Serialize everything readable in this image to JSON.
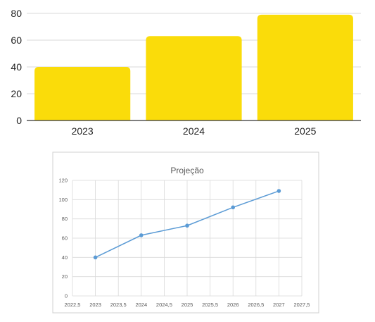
{
  "chart_data": [
    {
      "type": "bar",
      "categories": [
        "2023",
        "2024",
        "2025"
      ],
      "values": [
        40,
        63,
        79
      ],
      "title": "",
      "xlabel": "",
      "ylabel": "",
      "ylim": [
        0,
        80
      ],
      "yticks": [
        "0",
        "20",
        "40",
        "60",
        "80"
      ],
      "grid": true,
      "colors": {
        "bar": "#FADC0A",
        "grid": "#d9d9d9",
        "axis": "#333333"
      }
    },
    {
      "type": "line",
      "title": "Projeção",
      "xlabel": "",
      "ylabel": "",
      "x": [
        2023,
        2024,
        2025,
        2026,
        2027
      ],
      "series": [
        {
          "values": [
            40,
            63,
            73,
            92,
            109
          ]
        }
      ],
      "xlim": [
        2022.5,
        2027.5
      ],
      "ylim": [
        0,
        120
      ],
      "xticks": [
        "2022,5",
        "2023",
        "2023,5",
        "2024",
        "2024,5",
        "2025",
        "2025,5",
        "2026",
        "2026,5",
        "2027",
        "2027,5"
      ],
      "yticks": [
        "0",
        "20",
        "40",
        "60",
        "80",
        "100",
        "120"
      ],
      "grid": true,
      "colors": {
        "line": "#5B9BD5",
        "grid": "#d9d9d9",
        "frame": "#d0d0d0"
      }
    }
  ]
}
